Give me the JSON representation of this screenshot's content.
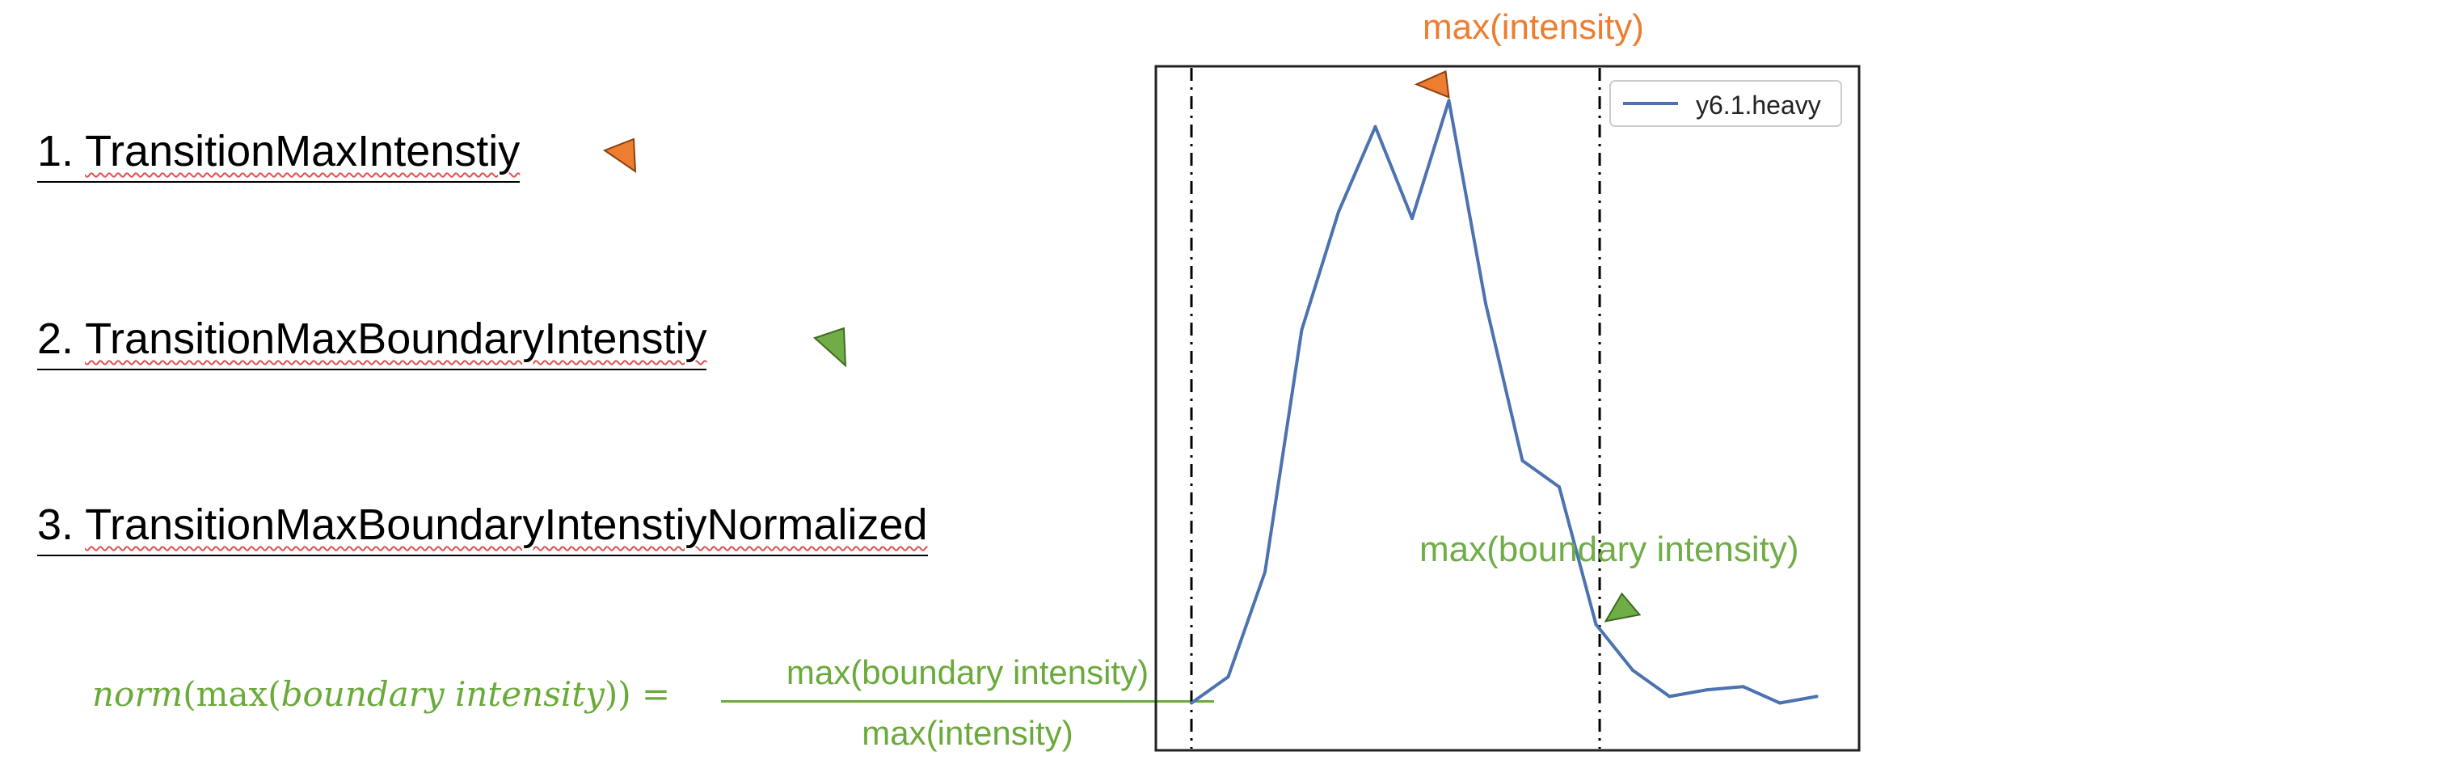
{
  "items": [
    {
      "number": "1.",
      "term": "TransitionMaxIntenstiy",
      "marker_color": "#ed7d31"
    },
    {
      "number": "2.",
      "term": "TransitionMaxBoundaryIntenstiy",
      "marker_color": "#70ad47"
    },
    {
      "number": "3.",
      "term": "TransitionMaxBoundaryIntenstiyNormalized"
    }
  ],
  "formula": {
    "lhs_func": "norm",
    "lhs_inner_func": "max",
    "lhs_arg": "boundary intensity",
    "numerator": "max(boundary intensity)",
    "denominator": "max(intensity)",
    "color": "#6aaa3a"
  },
  "annotations": {
    "max_intensity": "max(intensity)",
    "max_boundary_intensity": "max(boundary intensity)"
  },
  "chart_data": {
    "type": "line",
    "series": [
      {
        "name": "y6.1.heavy",
        "color": "#4c72b0",
        "y": [
          0.05,
          0.09,
          0.25,
          0.62,
          0.8,
          0.93,
          0.79,
          0.97,
          0.66,
          0.42,
          0.38,
          0.17,
          0.1,
          0.06,
          0.07,
          0.075,
          0.05,
          0.06
        ]
      }
    ],
    "boundaries_index": [
      0,
      11.1
    ],
    "legend": "top-right",
    "grid": false
  }
}
